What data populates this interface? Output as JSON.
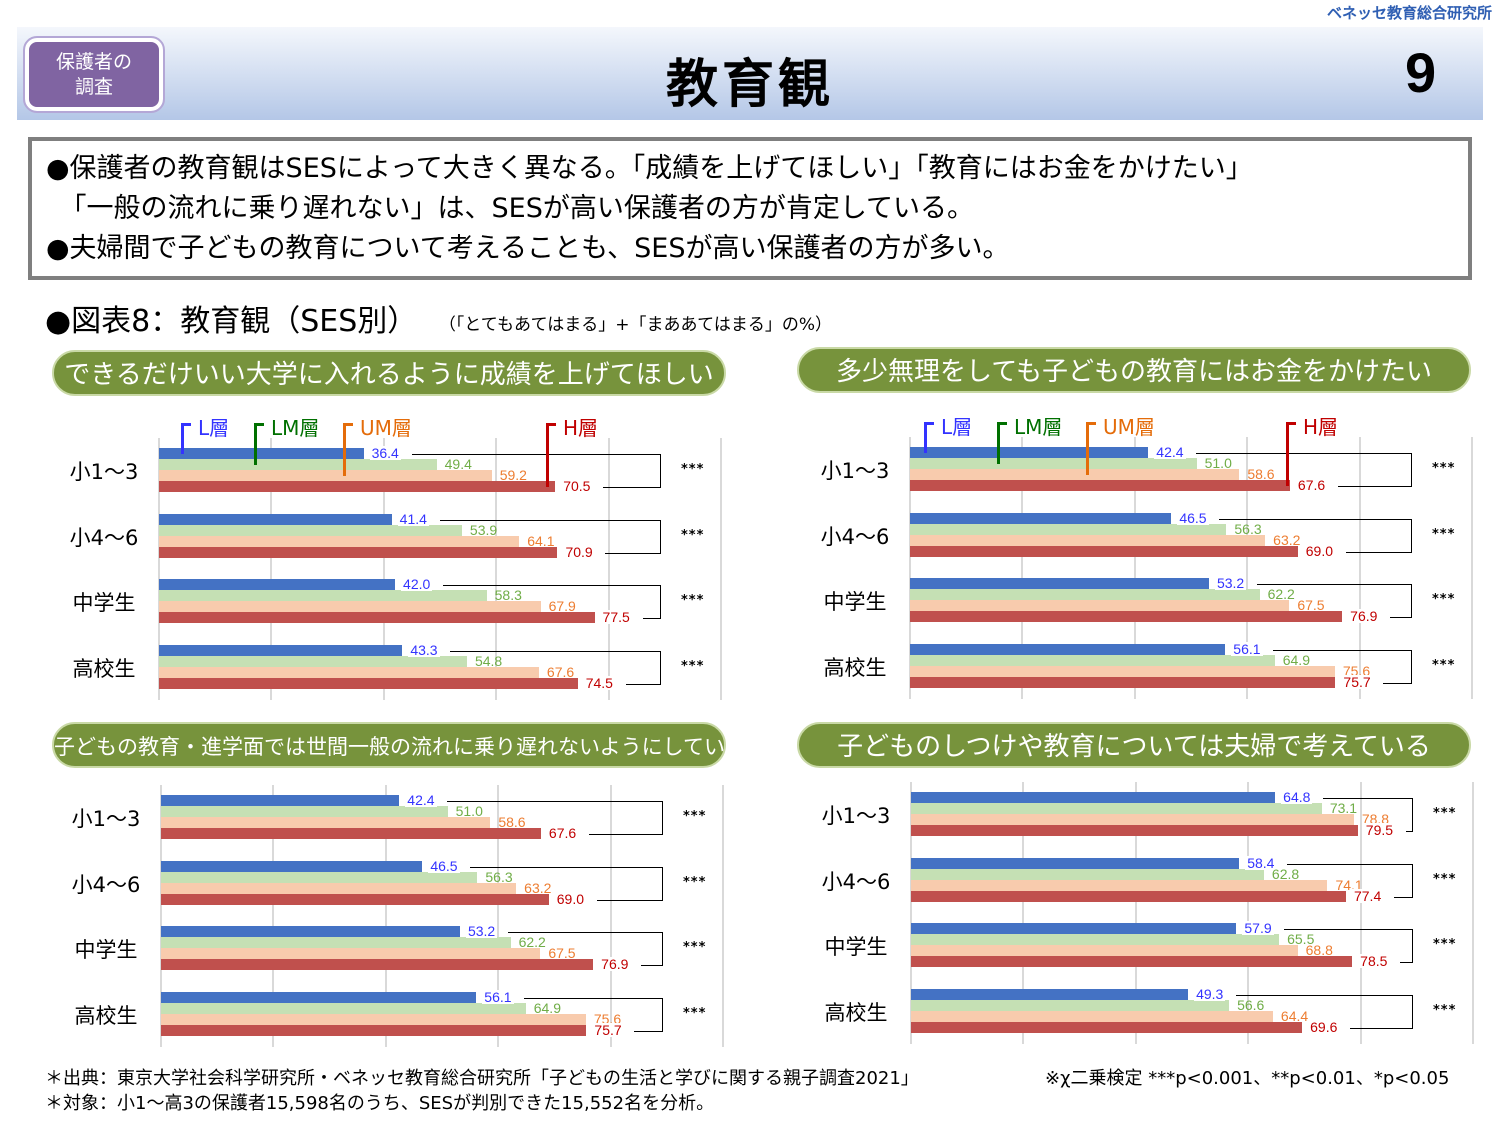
{
  "header": {
    "org": "ベネッセ教育総合研究所",
    "badge_line1": "保護者の",
    "badge_line2": "調査",
    "title": "教育観",
    "page": "9"
  },
  "summary": [
    "●保護者の教育観はSESによって大きく異なる。「成績を上げてほしい」「教育にはお金をかけたい」",
    "　「一般の流れに乗り遅れない」は、SESが高い保護者の方が肯定している。",
    "●夫婦間で子どもの教育について考えることも、SESが高い保護者の方が多い。"
  ],
  "section": {
    "title": "●図表8：教育観（SES別）",
    "note": "（「とてもあてはまる」+「まああてはまる」の%）"
  },
  "colors": {
    "L": "#4472c4",
    "LM": "#c5e0b4",
    "UM": "#f8cbad",
    "H": "#c0504d",
    "L_text": "#3333ff",
    "LM_text": "#70ad47",
    "UM_text": "#ed7d31",
    "H_text": "#c00000",
    "LM_leg": "#007000",
    "UM_leg": "#e46c0a",
    "title_bg": "#77933c"
  },
  "chart_data": [
    {
      "type": "bar",
      "title": "できるだけいい大学に入れるように成績を上げてほしい",
      "categories": [
        "小1～3",
        "小4～6",
        "中学生",
        "高校生"
      ],
      "legend": [
        "L層",
        "LM層",
        "UM層",
        "H層"
      ],
      "series": [
        {
          "name": "L層",
          "values": [
            36.4,
            41.4,
            42.0,
            43.3
          ]
        },
        {
          "name": "LM層",
          "values": [
            49.4,
            53.9,
            58.3,
            54.8
          ]
        },
        {
          "name": "UM層",
          "values": [
            59.2,
            64.1,
            67.9,
            67.6
          ]
        },
        {
          "name": "H層",
          "values": [
            70.5,
            70.9,
            77.5,
            74.5
          ]
        }
      ],
      "significance": [
        "***",
        "***",
        "***",
        "***"
      ],
      "xlim": [
        0,
        100
      ],
      "grid": true
    },
    {
      "type": "bar",
      "title": "多少無理をしても子どもの教育にはお金をかけたい",
      "categories": [
        "小1～3",
        "小4～6",
        "中学生",
        "高校生"
      ],
      "legend": [
        "L層",
        "LM層",
        "UM層",
        "H層"
      ],
      "series": [
        {
          "name": "L層",
          "values": [
            42.4,
            46.5,
            53.2,
            56.1
          ]
        },
        {
          "name": "LM層",
          "values": [
            51.0,
            56.3,
            62.2,
            64.9
          ]
        },
        {
          "name": "UM層",
          "values": [
            58.6,
            63.2,
            67.5,
            75.6
          ]
        },
        {
          "name": "H層",
          "values": [
            67.6,
            69.0,
            76.9,
            75.7
          ]
        }
      ],
      "significance": [
        "***",
        "***",
        "***",
        "***"
      ],
      "xlim": [
        0,
        100
      ],
      "grid": true
    },
    {
      "type": "bar",
      "title": "子どもの教育・進学面では世間一般の流れに乗り遅れないようにしている",
      "categories": [
        "小1～3",
        "小4～6",
        "中学生",
        "高校生"
      ],
      "series": [
        {
          "name": "L層",
          "values": [
            42.4,
            46.5,
            53.2,
            56.1
          ]
        },
        {
          "name": "LM層",
          "values": [
            51.0,
            56.3,
            62.2,
            64.9
          ]
        },
        {
          "name": "UM層",
          "values": [
            58.6,
            63.2,
            67.5,
            75.6
          ]
        },
        {
          "name": "H層",
          "values": [
            67.6,
            69.0,
            76.9,
            75.7
          ]
        }
      ],
      "significance": [
        "***",
        "***",
        "***",
        "***"
      ],
      "xlim": [
        0,
        100
      ],
      "grid": true
    },
    {
      "type": "bar",
      "title": "子どものしつけや教育については夫婦で考えている",
      "categories": [
        "小1～3",
        "小4～6",
        "中学生",
        "高校生"
      ],
      "series": [
        {
          "name": "L層",
          "values": [
            64.8,
            58.4,
            57.9,
            49.3
          ]
        },
        {
          "name": "LM層",
          "values": [
            73.1,
            62.8,
            65.5,
            56.6
          ]
        },
        {
          "name": "UM層",
          "values": [
            78.8,
            74.1,
            68.8,
            64.4
          ]
        },
        {
          "name": "H層",
          "values": [
            79.5,
            77.4,
            78.5,
            69.6
          ]
        }
      ],
      "significance": [
        "***",
        "***",
        "***",
        "***"
      ],
      "xlim": [
        0,
        100
      ],
      "grid": true
    }
  ],
  "footer": {
    "source": "＊出典：東京大学社会科学研究所・ベネッセ教育総合研究所「子どもの生活と学びに関する親子調査2021」",
    "target": "＊対象：小1～高3の保護者15,598名のうち、SESが判別できた15,552名を分析。",
    "test": "※χ二乗検定 ***p<0.001、**p<0.01、*p<0.05"
  }
}
